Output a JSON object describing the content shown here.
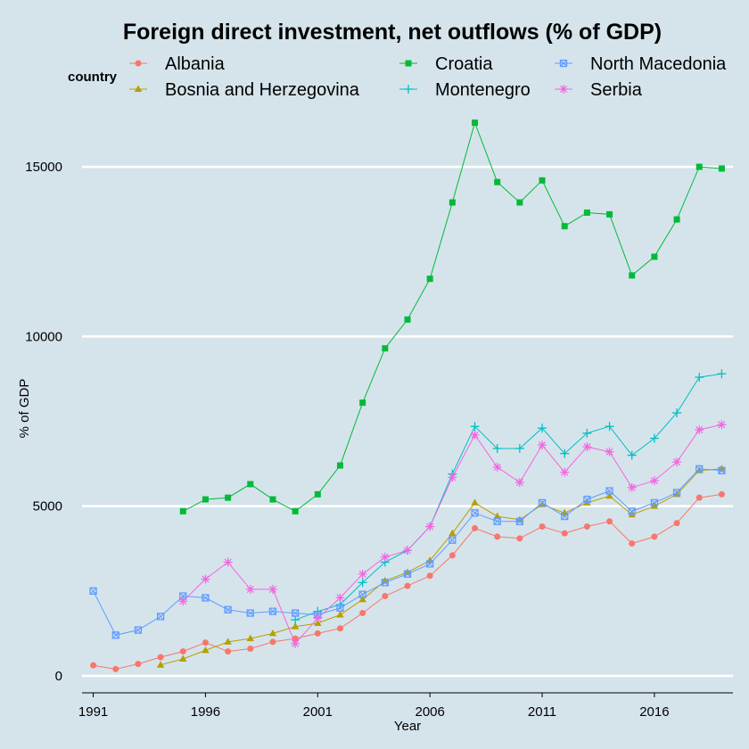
{
  "chart_data": {
    "type": "line",
    "title": "Foreign direct investment, net outflows (% of GDP)",
    "xlabel": "Year",
    "ylabel": "% of GDP",
    "legend_title": "country",
    "legend_placement": "top",
    "grid": true,
    "xlim": [
      1990.5,
      2019.5
    ],
    "ylim": [
      -500,
      16500
    ],
    "x_ticks": [
      1991,
      1996,
      2001,
      2006,
      2011,
      2016
    ],
    "y_ticks": [
      0,
      5000,
      10000,
      15000
    ],
    "x": [
      1991,
      1992,
      1993,
      1994,
      1995,
      1996,
      1997,
      1998,
      1999,
      2000,
      2001,
      2002,
      2003,
      2004,
      2005,
      2006,
      2007,
      2008,
      2009,
      2010,
      2011,
      2012,
      2013,
      2014,
      2015,
      2016,
      2017,
      2018,
      2019
    ],
    "series": [
      {
        "name": "Albania",
        "color": "#f8766d",
        "marker": "circle",
        "values": [
          310,
          200,
          350,
          550,
          720,
          980,
          720,
          800,
          1000,
          1100,
          1250,
          1400,
          1850,
          2350,
          2650,
          2950,
          3550,
          4350,
          4100,
          4050,
          4400,
          4200,
          4400,
          4550,
          3900,
          4100,
          4500,
          5250,
          5350
        ]
      },
      {
        "name": "Bosnia and Herzegovina",
        "color": "#b79f00",
        "marker": "triangle",
        "values": [
          null,
          null,
          null,
          320,
          500,
          750,
          1000,
          1100,
          1250,
          1450,
          1550,
          1800,
          2250,
          2800,
          3050,
          3400,
          4200,
          5100,
          4700,
          4600,
          5050,
          4800,
          5100,
          5300,
          4750,
          5000,
          5350,
          6050,
          6100
        ]
      },
      {
        "name": "Croatia",
        "color": "#00ba38",
        "marker": "square",
        "values": [
          null,
          null,
          null,
          null,
          4850,
          5200,
          5250,
          5650,
          5200,
          4850,
          5350,
          6200,
          8050,
          9650,
          10500,
          11700,
          13950,
          16300,
          14550,
          13950,
          14600,
          13250,
          13650,
          13600,
          11800,
          12350,
          13450,
          15000,
          14950
        ]
      },
      {
        "name": "Montenegro",
        "color": "#00bfc4",
        "marker": "plus",
        "values": [
          null,
          null,
          null,
          null,
          null,
          null,
          null,
          null,
          null,
          1650,
          1900,
          2100,
          2750,
          3350,
          3700,
          4400,
          5950,
          7350,
          6700,
          6700,
          7300,
          6550,
          7150,
          7350,
          6500,
          7000,
          7750,
          8800,
          8900
        ]
      },
      {
        "name": "North Macedonia",
        "color": "#619cff",
        "marker": "square-x",
        "values": [
          2500,
          1200,
          1350,
          1750,
          2350,
          2300,
          1950,
          1850,
          1900,
          1850,
          1800,
          2000,
          2400,
          2750,
          3000,
          3300,
          4000,
          4800,
          4550,
          4550,
          5100,
          4700,
          5200,
          5450,
          4850,
          5100,
          5400,
          6100,
          6050
        ]
      },
      {
        "name": "Serbia",
        "color": "#f564e3",
        "marker": "asterisk",
        "values": [
          null,
          null,
          null,
          null,
          2200,
          2850,
          3350,
          2550,
          2550,
          950,
          1700,
          2300,
          3000,
          3500,
          3700,
          4400,
          5850,
          7100,
          6150,
          5700,
          6800,
          6000,
          6750,
          6600,
          5550,
          5750,
          6300,
          7250,
          7400
        ]
      }
    ]
  }
}
